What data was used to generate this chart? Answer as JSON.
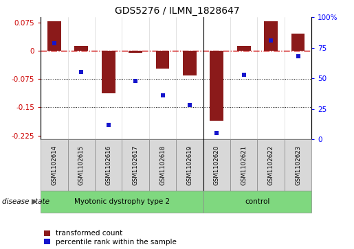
{
  "title": "GDS5276 / ILMN_1828647",
  "samples": [
    "GSM1102614",
    "GSM1102615",
    "GSM1102616",
    "GSM1102617",
    "GSM1102618",
    "GSM1102619",
    "GSM1102620",
    "GSM1102621",
    "GSM1102622",
    "GSM1102623"
  ],
  "transformed_count": [
    0.077,
    0.012,
    -0.113,
    -0.005,
    -0.048,
    -0.065,
    -0.185,
    0.012,
    0.077,
    0.045
  ],
  "percentile_rank": [
    79,
    55,
    12,
    48,
    36,
    28,
    5,
    53,
    81,
    68
  ],
  "group_labels": [
    "Myotonic dystrophy type 2",
    "control"
  ],
  "group_splits": [
    6,
    4
  ],
  "bar_color": "#8B1A1A",
  "dot_color": "#1515CC",
  "ylim_left": [
    -0.235,
    0.088
  ],
  "ylim_right": [
    0,
    100
  ],
  "yticks_left": [
    0.075,
    0.0,
    -0.075,
    -0.15,
    -0.225
  ],
  "ytick_labels_left": [
    "0.075",
    "0",
    "-0.075",
    "-0.15",
    "-0.225"
  ],
  "yticks_right": [
    100,
    75,
    50,
    25,
    0
  ],
  "ytick_labels_right": [
    "100%",
    "75",
    "50",
    "25",
    "0"
  ],
  "hline_y": 0.0,
  "dotted_lines": [
    -0.075,
    -0.15
  ],
  "legend_labels": [
    "transformed count",
    "percentile rank within the sample"
  ],
  "legend_colors": [
    "#8B1A1A",
    "#1515CC"
  ],
  "disease_state_label": "disease state",
  "green_color": "#7FD87F",
  "gray_color": "#D8D8D8",
  "separator_col": 6
}
